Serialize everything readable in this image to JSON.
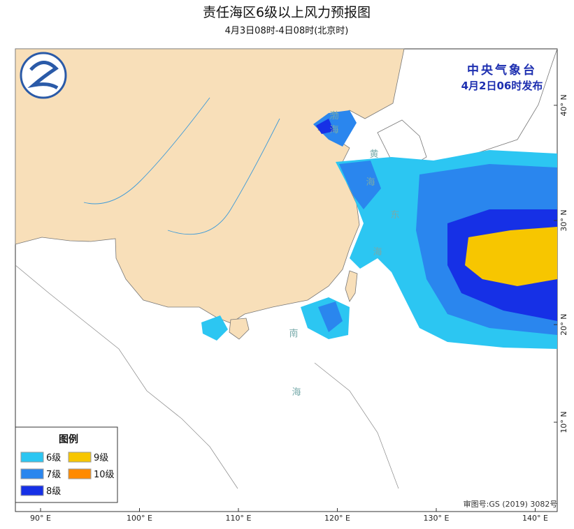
{
  "header": {
    "title": "责任海区6级以上风力预报图",
    "subtitle": "4月3日08时-4日08时(北京时)"
  },
  "issuer": {
    "agency": "中央气象台",
    "issued": "4月2日06时发布"
  },
  "sea_labels": [
    "渤",
    "海",
    "黄",
    "海",
    "东",
    "海",
    "南",
    "海"
  ],
  "lon_labels": [
    {
      "value": 90,
      "label": "90° E"
    },
    {
      "value": 100,
      "label": "100° E"
    },
    {
      "value": 110,
      "label": "110° E"
    },
    {
      "value": 120,
      "label": "120° E"
    },
    {
      "value": 130,
      "label": "130° E"
    },
    {
      "value": 140,
      "label": "140° E"
    }
  ],
  "lat_labels": [
    {
      "value": 10,
      "label": "10° N"
    },
    {
      "value": 20,
      "label": "20° N"
    },
    {
      "value": 30,
      "label": "30° N"
    },
    {
      "value": 40,
      "label": "40° N"
    }
  ],
  "legend": {
    "title": "图例",
    "items": [
      {
        "name": "6级",
        "color": "#2cc6f2"
      },
      {
        "name": "7级",
        "color": "#2a86ee"
      },
      {
        "name": "8级",
        "color": "#1630e6"
      },
      {
        "name": "9级",
        "color": "#f7c600"
      },
      {
        "name": "10级",
        "color": "#ff8a00"
      }
    ]
  },
  "approval": "审图号:GS (2019) 3082号"
}
